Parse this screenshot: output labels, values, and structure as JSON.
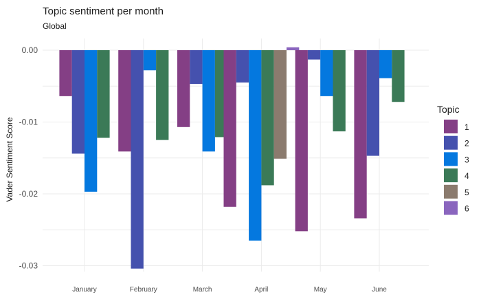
{
  "chart_data": {
    "type": "bar",
    "title": "Topic sentiment per month",
    "subtitle": "Global",
    "ylabel": "Vader Sentiment Score",
    "xlabel": "",
    "categories": [
      "January",
      "February",
      "March",
      "April",
      "May",
      "June"
    ],
    "ylim": [
      -0.0316,
      0.0006
    ],
    "yticks": [
      0.0,
      -0.01,
      -0.02,
      -0.03
    ],
    "ytick_labels": [
      "0.00",
      "-0.01",
      "-0.02",
      "-0.03"
    ],
    "grid": true,
    "legend": {
      "title": "Topic",
      "position": "right"
    },
    "series": [
      {
        "name": "1",
        "color": "#843F85",
        "values": [
          -0.0064,
          -0.0141,
          -0.0107,
          -0.0218,
          -0.0252,
          -0.0234
        ]
      },
      {
        "name": "2",
        "color": "#4551AE",
        "values": [
          -0.0144,
          -0.0304,
          -0.0047,
          -0.0045,
          -0.0013,
          -0.0147
        ]
      },
      {
        "name": "3",
        "color": "#0478DF",
        "values": [
          -0.0197,
          -0.0028,
          -0.0141,
          -0.0265,
          -0.0064,
          -0.0039
        ]
      },
      {
        "name": "4",
        "color": "#3B7A57",
        "values": [
          -0.0122,
          -0.0125,
          -0.0121,
          -0.0188,
          -0.0113,
          -0.0072
        ]
      },
      {
        "name": "5",
        "color": "#8B7B6E",
        "values": [
          null,
          null,
          null,
          -0.0151,
          null,
          null
        ]
      },
      {
        "name": "6",
        "color": "#8A65BE",
        "values": [
          null,
          null,
          null,
          0.0004,
          null,
          null
        ]
      }
    ]
  }
}
